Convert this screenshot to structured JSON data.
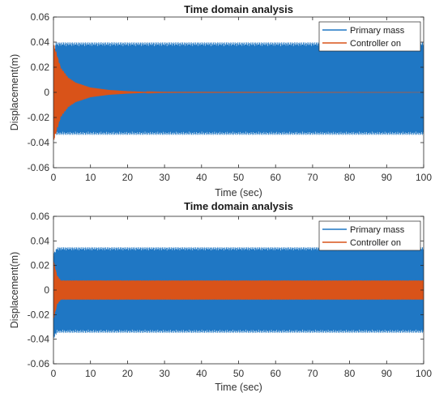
{
  "chart_data": [
    {
      "type": "line",
      "title": "Time domain analysis",
      "xlabel": "Time (sec)",
      "ylabel": "Displacement(m)",
      "xlim": [
        0,
        100
      ],
      "ylim": [
        -0.06,
        0.06
      ],
      "xticks": [
        "0",
        "10",
        "20",
        "30",
        "40",
        "50",
        "60",
        "70",
        "80",
        "90",
        "100"
      ],
      "yticks": [
        "0.06",
        "0.04",
        "0.02",
        "0",
        "-0.02",
        "-0.04",
        "-0.06"
      ],
      "legend_position": "top-right",
      "series": [
        {
          "name": "Primary mass",
          "color": "#1f77c4",
          "style": "dense oscillation",
          "upper_envelope": {
            "x": [
              0,
              0.5,
              1,
              100
            ],
            "y": [
              0.02,
              0.04,
              0.04,
              0.04
            ]
          },
          "lower_envelope": {
            "x": [
              0,
              0.5,
              1,
              100
            ],
            "y": [
              -0.03,
              -0.034,
              -0.034,
              -0.034
            ]
          }
        },
        {
          "name": "Controller on",
          "color": "#d95319",
          "style": "decaying oscillation",
          "upper_envelope": {
            "x": [
              0,
              1,
              2,
              4,
              6,
              10,
              15,
              20,
              25,
              30,
              100
            ],
            "y": [
              0.04,
              0.03,
              0.02,
              0.012,
              0.008,
              0.004,
              0.002,
              0.001,
              0.0004,
              0.0002,
              0.0
            ]
          },
          "lower_envelope": {
            "x": [
              0,
              1,
              2,
              4,
              6,
              10,
              15,
              20,
              25,
              30,
              100
            ],
            "y": [
              -0.04,
              -0.03,
              -0.02,
              -0.012,
              -0.008,
              -0.004,
              -0.002,
              -0.001,
              -0.0004,
              -0.0002,
              0.0
            ]
          }
        }
      ]
    },
    {
      "type": "line",
      "title": "Time domain analysis",
      "xlabel": "Time (sec)",
      "ylabel": "Displacement(m)",
      "xlim": [
        0,
        100
      ],
      "ylim": [
        -0.06,
        0.06
      ],
      "xticks": [
        "0",
        "10",
        "20",
        "30",
        "40",
        "50",
        "60",
        "70",
        "80",
        "90",
        "100"
      ],
      "yticks": [
        "0.06",
        "0.04",
        "0.02",
        "0",
        "-0.02",
        "-0.04",
        "-0.06"
      ],
      "legend_position": "top-right",
      "series": [
        {
          "name": "Primary mass",
          "color": "#1f77c4",
          "style": "dense oscillation",
          "upper_envelope": {
            "x": [
              0,
              1,
              100
            ],
            "y": [
              0.03,
              0.035,
              0.035
            ]
          },
          "lower_envelope": {
            "x": [
              0,
              1,
              100
            ],
            "y": [
              -0.04,
              -0.035,
              -0.035
            ]
          }
        },
        {
          "name": "Controller on",
          "color": "#d95319",
          "style": "dense oscillation",
          "upper_envelope": {
            "x": [
              0,
              1,
              2,
              100
            ],
            "y": [
              0.025,
              0.012,
              0.008,
              0.008
            ]
          },
          "lower_envelope": {
            "x": [
              0,
              1,
              2,
              100
            ],
            "y": [
              -0.025,
              -0.012,
              -0.008,
              -0.008
            ]
          }
        }
      ]
    }
  ]
}
